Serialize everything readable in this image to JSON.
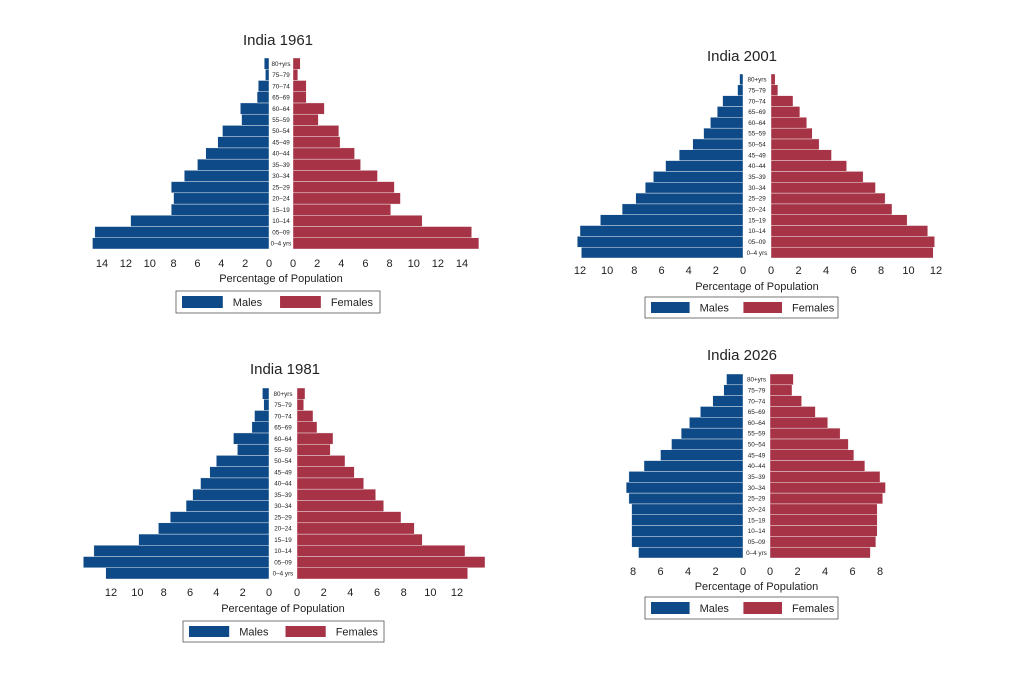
{
  "chart_data": [
    {
      "type": "bar",
      "subtype": "population-pyramid",
      "title": "India 1961",
      "xlabel": "Percentage of Population",
      "categories": [
        "0–4 yrs",
        "05–09",
        "10–14",
        "15–19",
        "20–24",
        "25–29",
        "30–34",
        "35–39",
        "40–44",
        "45–49",
        "50–54",
        "55–59",
        "60–64",
        "65–69",
        "70–74",
        "75–79",
        "80+yrs"
      ],
      "xticks": [
        0,
        2,
        4,
        6,
        8,
        10,
        12,
        14
      ],
      "xlim": [
        0,
        15.5
      ],
      "series": [
        {
          "name": "Males",
          "color": "#0f4a88",
          "values": [
            14.8,
            14.6,
            11.6,
            8.2,
            8.0,
            8.2,
            7.1,
            6.0,
            5.3,
            4.3,
            3.9,
            2.3,
            2.4,
            1.0,
            0.9,
            0.3,
            0.4
          ]
        },
        {
          "name": "Females",
          "color": "#a63446",
          "values": [
            15.4,
            14.8,
            10.7,
            8.1,
            8.9,
            8.4,
            7.0,
            5.6,
            5.1,
            3.9,
            3.8,
            2.1,
            2.6,
            1.1,
            1.1,
            0.4,
            0.6
          ]
        }
      ],
      "legend": "bottom",
      "grid": false
    },
    {
      "type": "bar",
      "subtype": "population-pyramid",
      "title": "India 2001",
      "xlabel": "Percentage of Population",
      "categories": [
        "0–4 yrs",
        "05–09",
        "10–14",
        "15–19",
        "20–24",
        "25–29",
        "30–34",
        "35–39",
        "40–44",
        "45–49",
        "50–54",
        "55–59",
        "60–64",
        "65–69",
        "70–74",
        "75–79",
        "80+yrs"
      ],
      "xticks": [
        0,
        2,
        4,
        6,
        8,
        10,
        12
      ],
      "xlim": [
        0,
        12.2
      ],
      "series": [
        {
          "name": "Males",
          "color": "#0f4a88",
          "values": [
            11.9,
            12.2,
            12.0,
            10.5,
            8.9,
            7.9,
            7.2,
            6.6,
            5.7,
            4.7,
            3.7,
            2.9,
            2.4,
            1.9,
            1.5,
            0.4,
            0.25
          ]
        },
        {
          "name": "Females",
          "color": "#a63446",
          "values": [
            11.8,
            11.9,
            11.4,
            9.9,
            8.8,
            8.3,
            7.6,
            6.7,
            5.5,
            4.4,
            3.5,
            3.0,
            2.6,
            2.1,
            1.6,
            0.5,
            0.3
          ]
        }
      ],
      "legend": "bottom",
      "grid": false
    },
    {
      "type": "bar",
      "subtype": "population-pyramid",
      "title": "India 1981",
      "xlabel": "Percentage of Population",
      "categories": [
        "0–4 yrs",
        "05–09",
        "10–14",
        "15–19",
        "20–24",
        "25–29",
        "30–34",
        "35–39",
        "40–44",
        "45–49",
        "50–54",
        "55–59",
        "60–64",
        "65–69",
        "70–74",
        "75–79",
        "80+yrs"
      ],
      "xticks": [
        0,
        2,
        4,
        6,
        8,
        10,
        12
      ],
      "xlim": [
        0,
        14.1
      ],
      "series": [
        {
          "name": "Males",
          "color": "#0f4a88",
          "values": [
            12.4,
            14.1,
            13.3,
            9.9,
            8.4,
            7.5,
            6.3,
            5.8,
            5.2,
            4.5,
            4.0,
            2.4,
            2.7,
            1.3,
            1.1,
            0.4,
            0.5
          ]
        },
        {
          "name": "Females",
          "color": "#a63446",
          "values": [
            12.8,
            14.1,
            12.6,
            9.4,
            8.8,
            7.8,
            6.5,
            5.9,
            5.0,
            4.3,
            3.6,
            2.5,
            2.7,
            1.5,
            1.2,
            0.5,
            0.6
          ]
        }
      ],
      "legend": "bottom",
      "grid": false
    },
    {
      "type": "bar",
      "subtype": "population-pyramid",
      "title": "India 2026",
      "xlabel": "Percentage of Population",
      "categories": [
        "0–4 yrs",
        "05–09",
        "10–14",
        "15–19",
        "20–24",
        "25–29",
        "30–34",
        "35–39",
        "40–44",
        "45–49",
        "50–54",
        "55–59",
        "60–64",
        "65–69",
        "70–74",
        "75–79",
        "80+yrs"
      ],
      "xticks": [
        0,
        2,
        4,
        6,
        8
      ],
      "xlim": [
        0,
        8.5
      ],
      "series": [
        {
          "name": "Males",
          "color": "#0f4a88",
          "values": [
            7.6,
            8.1,
            8.1,
            8.1,
            8.1,
            8.3,
            8.5,
            8.3,
            7.2,
            6.0,
            5.2,
            4.5,
            3.9,
            3.1,
            2.2,
            1.4,
            1.2
          ]
        },
        {
          "name": "Females",
          "color": "#a63446",
          "values": [
            7.3,
            7.7,
            7.8,
            7.8,
            7.8,
            8.2,
            8.4,
            8.0,
            6.9,
            6.1,
            5.7,
            5.1,
            4.2,
            3.3,
            2.3,
            1.6,
            1.7
          ]
        }
      ],
      "legend": "bottom",
      "grid": false
    }
  ]
}
